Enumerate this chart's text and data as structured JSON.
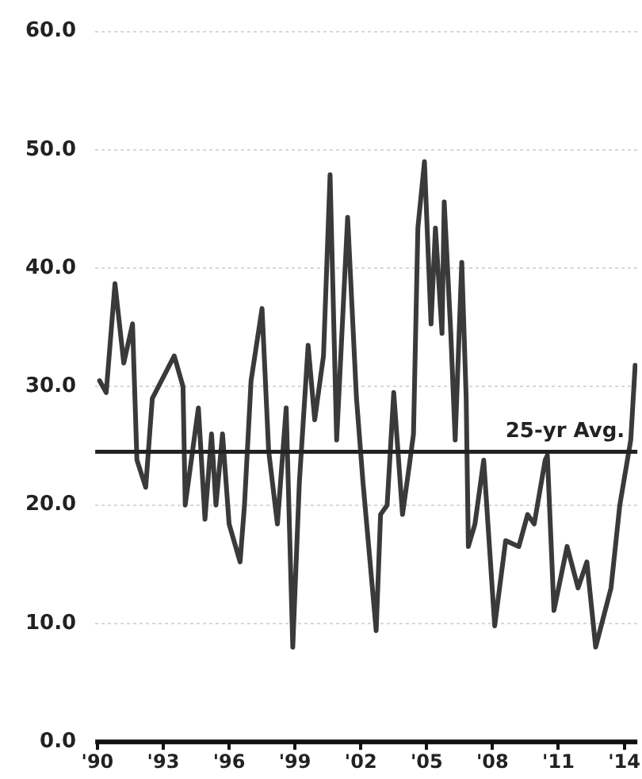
{
  "chart_data": {
    "type": "line",
    "x": [
      1990.1,
      1990.4,
      1990.8,
      1991.2,
      1991.6,
      1991.8,
      1992.2,
      1992.5,
      1993.5,
      1993.9,
      1994.0,
      1994.6,
      1994.9,
      1995.2,
      1995.4,
      1995.7,
      1996.0,
      1996.5,
      1996.7,
      1997.0,
      1997.5,
      1997.8,
      1998.2,
      1998.6,
      1998.9,
      1999.2,
      1999.6,
      1999.9,
      2000.3,
      2000.6,
      2000.9,
      2001.4,
      2001.8,
      2002.1,
      2002.7,
      2002.9,
      2003.2,
      2003.5,
      2003.9,
      2004.2,
      2004.4,
      2004.6,
      2004.9,
      2005.2,
      2005.4,
      2005.7,
      2005.8,
      2006.1,
      2006.3,
      2006.6,
      2006.8,
      2006.9,
      2007.2,
      2007.6,
      2008.1,
      2008.6,
      2009.2,
      2009.6,
      2009.9,
      2010.4,
      2010.5,
      2010.8,
      2011.4,
      2011.9,
      2012.3,
      2012.7,
      2013.4,
      2013.8,
      2014.3,
      2014.5
    ],
    "series": [
      {
        "color": "#3a3a3a",
        "values": [
          30.5,
          29.5,
          38.7,
          32,
          35.3,
          23.8,
          21.5,
          29,
          32.6,
          30,
          20,
          28.2,
          18.8,
          26,
          20,
          26,
          18.4,
          15.2,
          20,
          30.5,
          36.6,
          24.6,
          18.4,
          28.2,
          8,
          21.9,
          33.5,
          27.2,
          32.6,
          47.9,
          25.5,
          44.3,
          29.1,
          21.9,
          9.4,
          19.2,
          20,
          29.5,
          19.2,
          23.2,
          26,
          43.4,
          49,
          35.3,
          43.4,
          34.5,
          45.6,
          34.5,
          25.5,
          40.5,
          29.1,
          16.5,
          18.4,
          23.8,
          9.8,
          17,
          16.5,
          19.2,
          18.4,
          23.8,
          24.2,
          11.1,
          16.5,
          13,
          15.2,
          8,
          13,
          20,
          25.5,
          31.8
        ]
      }
    ],
    "xlim": [
      1989.9,
      2014.6
    ],
    "xticks": [
      {
        "value": 1990,
        "label": "'90"
      },
      {
        "value": 1993,
        "label": "'93"
      },
      {
        "value": 1996,
        "label": "'96"
      },
      {
        "value": 1999,
        "label": "'99"
      },
      {
        "value": 2002,
        "label": "'02"
      },
      {
        "value": 2005,
        "label": "'05"
      },
      {
        "value": 2008,
        "label": "'08"
      },
      {
        "value": 2011,
        "label": "'11"
      },
      {
        "value": 2014,
        "label": "'14"
      }
    ],
    "ylim": [
      0,
      60
    ],
    "yticks": [
      {
        "value": 0,
        "label": "0.0"
      },
      {
        "value": 10,
        "label": "10.0"
      },
      {
        "value": 20,
        "label": "20.0"
      },
      {
        "value": 30,
        "label": "30.0"
      },
      {
        "value": 40,
        "label": "40.0"
      },
      {
        "value": 50,
        "label": "50.0"
      },
      {
        "value": 60,
        "label": "60.0"
      }
    ],
    "grid": "y",
    "legend": false,
    "marker": "none",
    "ref_lines": [
      {
        "axis": "y",
        "value": 24.5,
        "label": "25-yr Avg.",
        "color": "#222222"
      }
    ]
  }
}
